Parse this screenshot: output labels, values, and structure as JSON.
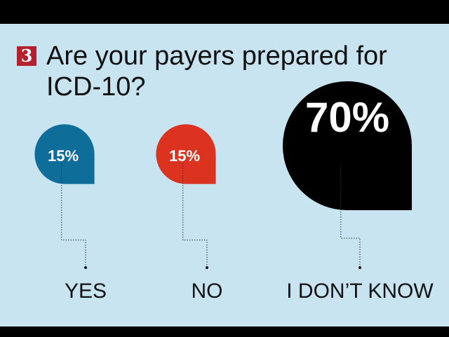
{
  "question": {
    "number": "3",
    "title": "Are your payers prepared for ICD-10?"
  },
  "chart_data": {
    "type": "bubble",
    "title": "Are your payers prepared for ICD-10?",
    "categories": [
      "YES",
      "NO",
      "I DON’T KNOW"
    ],
    "values": [
      15,
      15,
      70
    ],
    "value_labels": [
      "15%",
      "15%",
      "70%"
    ],
    "colors": [
      "#0f6e99",
      "#dc3321",
      "#000000"
    ],
    "unit": "%",
    "legend": "none"
  }
}
